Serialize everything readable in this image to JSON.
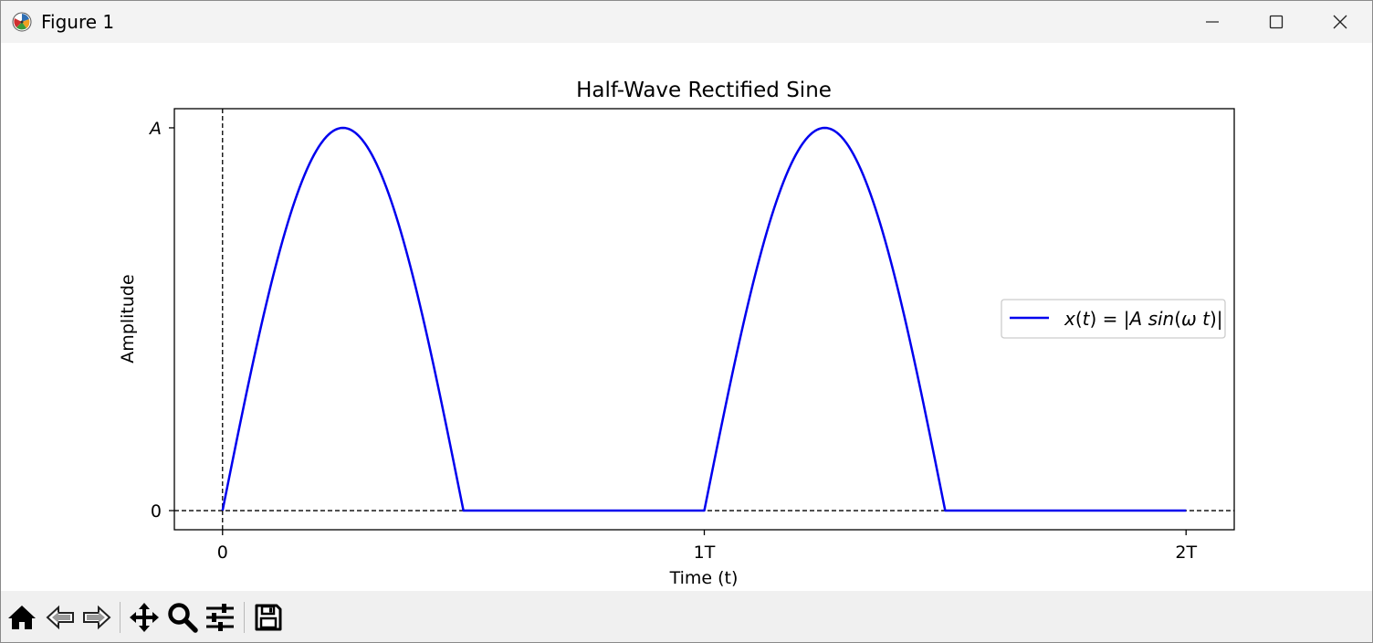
{
  "window": {
    "title": "Figure 1",
    "icon": "matplotlib-logo-icon",
    "controls": [
      "minimize-icon",
      "maximize-icon",
      "close-icon"
    ]
  },
  "toolbar": {
    "tools": [
      "home-icon",
      "back-arrow-icon",
      "forward-arrow-icon",
      "pan-move-icon",
      "zoom-magnifier-icon",
      "configure-subplots-icon",
      "save-floppy-icon"
    ]
  },
  "chart_data": {
    "type": "line",
    "title": "Half-Wave Rectified Sine",
    "xlabel": "Time (t)",
    "ylabel": "Amplitude",
    "xlim": [
      -0.1,
      2.1
    ],
    "ylim": [
      -0.05,
      1.05
    ],
    "xticks": [
      0,
      1,
      2
    ],
    "xtick_labels": [
      "0",
      "1T",
      "2T"
    ],
    "yticks": [
      0,
      1
    ],
    "ytick_labels": [
      "0",
      "A"
    ],
    "series": [
      {
        "name": "x(t) = |A sin(ω t)|",
        "color": "#0000ee",
        "x": [
          0,
          0.05,
          0.1,
          0.15,
          0.2,
          0.25,
          0.3,
          0.35,
          0.4,
          0.45,
          0.5,
          0.55,
          0.6,
          0.65,
          0.7,
          0.75,
          0.8,
          0.85,
          0.9,
          0.95,
          1.0,
          1.05,
          1.1,
          1.15,
          1.2,
          1.25,
          1.3,
          1.35,
          1.4,
          1.45,
          1.5,
          1.55,
          1.6,
          1.65,
          1.7,
          1.75,
          1.8,
          1.85,
          1.9,
          1.95,
          2.0
        ],
        "y": [
          0,
          0.309,
          0.588,
          0.809,
          0.951,
          1.0,
          0.951,
          0.809,
          0.588,
          0.309,
          0,
          0,
          0,
          0,
          0,
          0,
          0,
          0,
          0,
          0,
          0,
          0.309,
          0.588,
          0.809,
          0.951,
          1.0,
          0.951,
          0.809,
          0.588,
          0.309,
          0,
          0,
          0,
          0,
          0,
          0,
          0,
          0,
          0,
          0,
          0
        ]
      }
    ],
    "reference_lines": [
      {
        "orientation": "horizontal",
        "value": 0,
        "style": "dashed",
        "color": "#000000"
      },
      {
        "orientation": "vertical",
        "value": 0,
        "style": "dashed",
        "color": "#000000"
      }
    ],
    "legend": {
      "placement": "center-right",
      "latex_parts": [
        "x",
        "(",
        "t",
        ") = |",
        "A",
        " ",
        "sin",
        "(",
        "ω",
        " ",
        "t",
        ")|"
      ]
    },
    "grid": false
  }
}
